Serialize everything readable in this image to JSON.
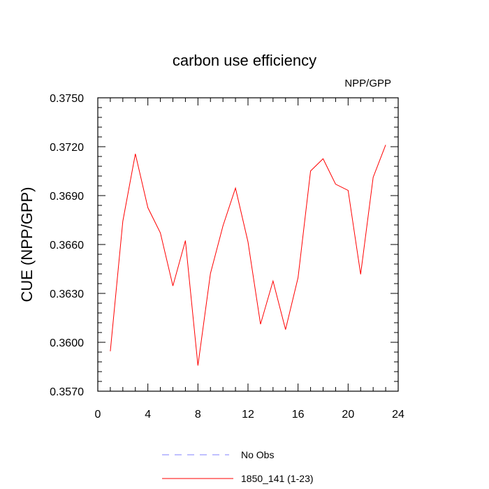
{
  "chart_data": {
    "type": "line",
    "title": "carbon use efficiency",
    "subtitle": "NPP/GPP",
    "xlabel": "",
    "ylabel": "CUE  (NPP/GPP)",
    "xlim": [
      0,
      24
    ],
    "ylim": [
      0.357,
      0.375
    ],
    "x_ticks": [
      0,
      4,
      8,
      12,
      16,
      20,
      24
    ],
    "y_ticks": [
      0.357,
      0.36,
      0.363,
      0.366,
      0.369,
      0.372,
      0.375
    ],
    "y_tick_labels": [
      "0.3570",
      "0.3600",
      "0.3630",
      "0.3660",
      "0.3690",
      "0.3720",
      "0.3750"
    ],
    "x_minor_step": 1,
    "y_minor_step": 0.0006,
    "grid": false,
    "legend_position": "bottom-center",
    "series": [
      {
        "name": "No Obs",
        "color": "#8080ff",
        "dash": true,
        "x": [],
        "values": []
      },
      {
        "name": "1850_141 (1-23)",
        "color": "#ff0000",
        "dash": false,
        "x": [
          1,
          2,
          3,
          4,
          5,
          6,
          7,
          8,
          9,
          10,
          11,
          12,
          13,
          14,
          15,
          16,
          17,
          18,
          19,
          20,
          21,
          22,
          23
        ],
        "values": [
          0.35945,
          0.36743,
          0.37156,
          0.36826,
          0.36671,
          0.36346,
          0.36624,
          0.35857,
          0.36422,
          0.36714,
          0.36946,
          0.36616,
          0.36111,
          0.36376,
          0.36078,
          0.36397,
          0.37051,
          0.37126,
          0.3697,
          0.36932,
          0.36417,
          0.37012,
          0.37211
        ]
      }
    ]
  }
}
